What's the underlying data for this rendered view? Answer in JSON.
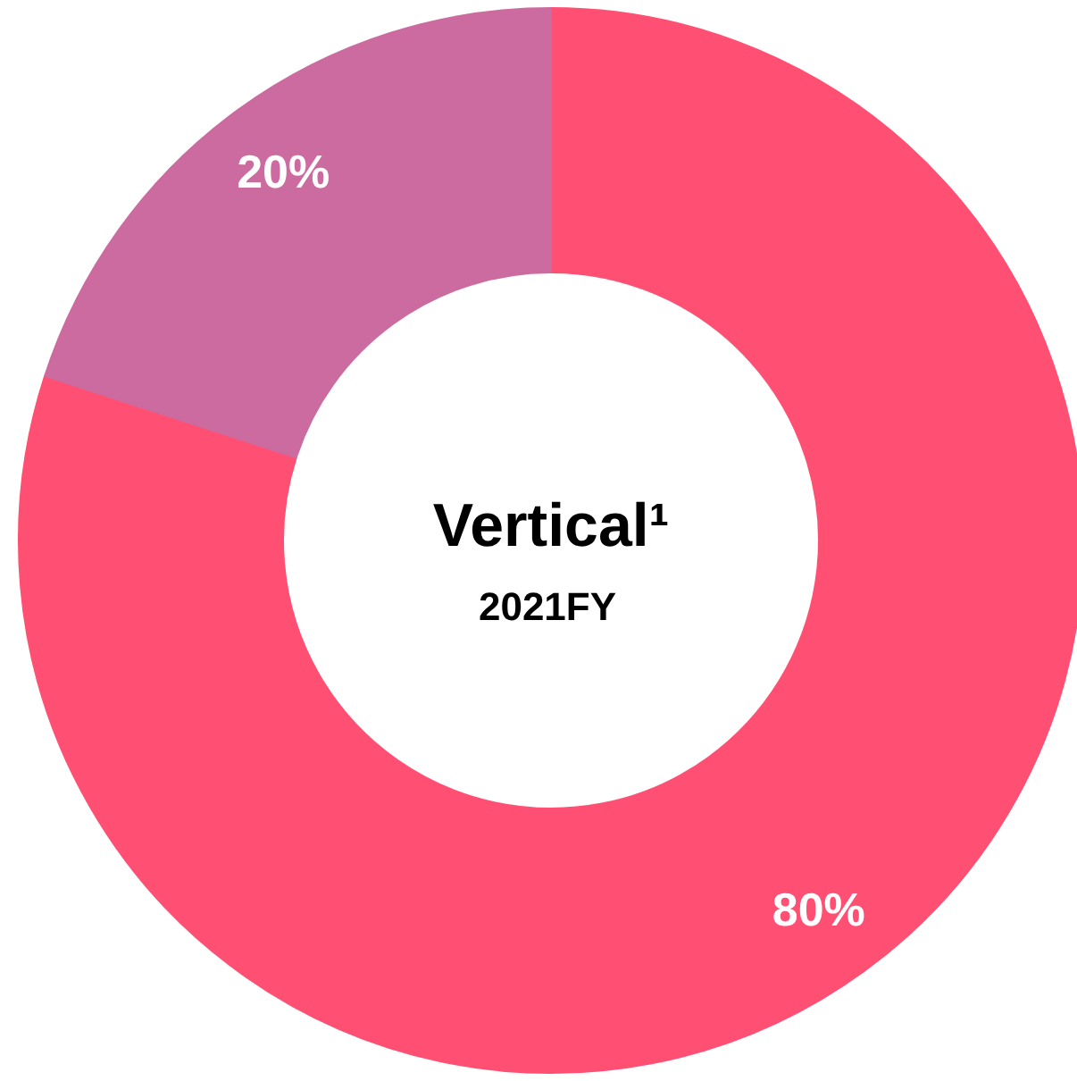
{
  "chart_data": {
    "type": "donut",
    "title": "Vertical¹",
    "subtitle": "2021FY",
    "categories": [
      null,
      null
    ],
    "values": [
      80,
      20
    ],
    "colors": [
      "#ff5073",
      "#cc6b9f"
    ],
    "value_labels": [
      "80%",
      "20%"
    ]
  }
}
